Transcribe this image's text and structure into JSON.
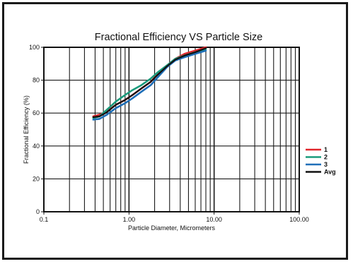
{
  "chart_data": {
    "type": "line",
    "title": "Fractional Efficiency VS Particle Size",
    "xlabel": "Particle Diameter, Micrometers",
    "ylabel": "Fractional Efficiency (%)",
    "xscale": "log",
    "xlim": [
      0.1,
      100
    ],
    "ylim": [
      0,
      100
    ],
    "x_ticks": [
      {
        "value": 0.1,
        "label": "0.1"
      },
      {
        "value": 1,
        "label": "1.00"
      },
      {
        "value": 10,
        "label": "10.00"
      },
      {
        "value": 100,
        "label": "100.00"
      }
    ],
    "y_ticks": [
      {
        "value": 0,
        "label": "0"
      },
      {
        "value": 20,
        "label": "20"
      },
      {
        "value": 40,
        "label": "40"
      },
      {
        "value": 60,
        "label": "60"
      },
      {
        "value": 80,
        "label": "80"
      },
      {
        "value": 100,
        "label": "100"
      }
    ],
    "grid": true,
    "legend_position": "right",
    "series": [
      {
        "name": "1",
        "color": "#e0262b",
        "x": [
          0.38,
          0.45,
          0.55,
          0.7,
          0.9,
          1.1,
          1.4,
          1.8,
          2.2,
          2.8,
          3.5,
          4.5,
          6,
          8
        ],
        "y": [
          58,
          59,
          61,
          65,
          68,
          71,
          75,
          79,
          84,
          89,
          93,
          96,
          98,
          100
        ]
      },
      {
        "name": "2",
        "color": "#1a9b7c",
        "x": [
          0.38,
          0.45,
          0.55,
          0.7,
          0.9,
          1.1,
          1.4,
          1.8,
          2.2,
          2.8,
          3.5,
          4.5,
          6,
          8
        ],
        "y": [
          57,
          58,
          62,
          67,
          71,
          74,
          77,
          81,
          85,
          89,
          93,
          95,
          97,
          99
        ]
      },
      {
        "name": "3",
        "color": "#1f6fb8",
        "x": [
          0.38,
          0.45,
          0.55,
          0.7,
          0.9,
          1.1,
          1.4,
          1.8,
          2.2,
          2.8,
          3.5,
          4.5,
          6,
          8
        ],
        "y": [
          56,
          56.5,
          59,
          63,
          66,
          69,
          73,
          77,
          82,
          88,
          92,
          94,
          96,
          98
        ]
      },
      {
        "name": "Avg",
        "color": "#111111",
        "x": [
          0.38,
          0.45,
          0.55,
          0.7,
          0.9,
          1.1,
          1.4,
          1.8,
          2.2,
          2.8,
          3.5,
          4.5,
          6,
          8
        ],
        "y": [
          57.5,
          58,
          60.5,
          65,
          68,
          71,
          75,
          79,
          83.5,
          88.5,
          92.5,
          95,
          97,
          99.5
        ]
      }
    ]
  }
}
